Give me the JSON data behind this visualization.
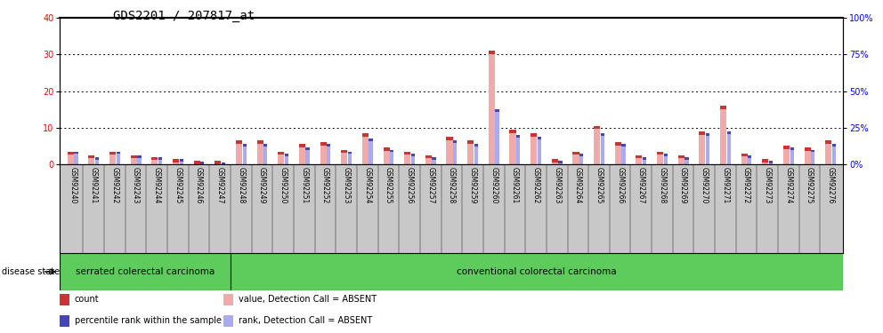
{
  "title": "GDS2201 / 207817_at",
  "samples": [
    "GSM92240",
    "GSM92241",
    "GSM92242",
    "GSM92243",
    "GSM92244",
    "GSM92245",
    "GSM92246",
    "GSM92247",
    "GSM92248",
    "GSM92249",
    "GSM92250",
    "GSM92251",
    "GSM92252",
    "GSM92253",
    "GSM92254",
    "GSM92255",
    "GSM92256",
    "GSM92257",
    "GSM92258",
    "GSM92259",
    "GSM92260",
    "GSM92261",
    "GSM92262",
    "GSM92263",
    "GSM92264",
    "GSM92265",
    "GSM92266",
    "GSM92267",
    "GSM92268",
    "GSM92269",
    "GSM92270",
    "GSM92271",
    "GSM92272",
    "GSM92273",
    "GSM92274",
    "GSM92275",
    "GSM92276"
  ],
  "absent_count_vals": [
    3.5,
    2.5,
    3.5,
    2.5,
    2.0,
    1.5,
    1.0,
    1.0,
    6.5,
    6.5,
    3.5,
    5.5,
    6.0,
    4.0,
    8.5,
    4.5,
    3.5,
    2.5,
    7.5,
    6.5,
    31.0,
    9.5,
    8.5,
    1.5,
    3.5,
    10.5,
    6.0,
    2.5,
    3.5,
    2.5,
    9.0,
    16.0,
    3.0,
    1.5,
    5.0,
    4.5,
    6.5
  ],
  "absent_rank_vals": [
    3.5,
    2.0,
    3.5,
    2.5,
    2.0,
    1.5,
    0.8,
    0.5,
    5.5,
    5.5,
    3.0,
    4.5,
    5.5,
    3.5,
    7.0,
    4.0,
    3.0,
    2.0,
    6.5,
    5.5,
    15.0,
    8.0,
    7.5,
    1.0,
    3.0,
    8.5,
    5.5,
    2.0,
    3.0,
    2.0,
    8.5,
    9.0,
    2.5,
    1.0,
    4.5,
    4.0,
    5.5
  ],
  "group1_label": "serrated colerectal carcinoma",
  "group2_label": "conventional colorectal carcinoma",
  "group1_count": 8,
  "n_samples": 37,
  "ylim_left": [
    0,
    40
  ],
  "ylim_right": [
    0,
    100
  ],
  "yticks_left": [
    0,
    10,
    20,
    30,
    40
  ],
  "yticks_right": [
    0,
    25,
    50,
    75,
    100
  ],
  "color_count": "#cc3333",
  "color_rank": "#4444bb",
  "color_absent_count": "#f0aaaa",
  "color_absent_rank": "#aaaaee",
  "bg_label": "#c8c8c8",
  "bg_group": "#5dcc5d",
  "title_fontsize": 10,
  "tick_fontsize": 7,
  "sample_fontsize": 5.5,
  "legend_fontsize": 7,
  "group_fontsize": 7.5
}
